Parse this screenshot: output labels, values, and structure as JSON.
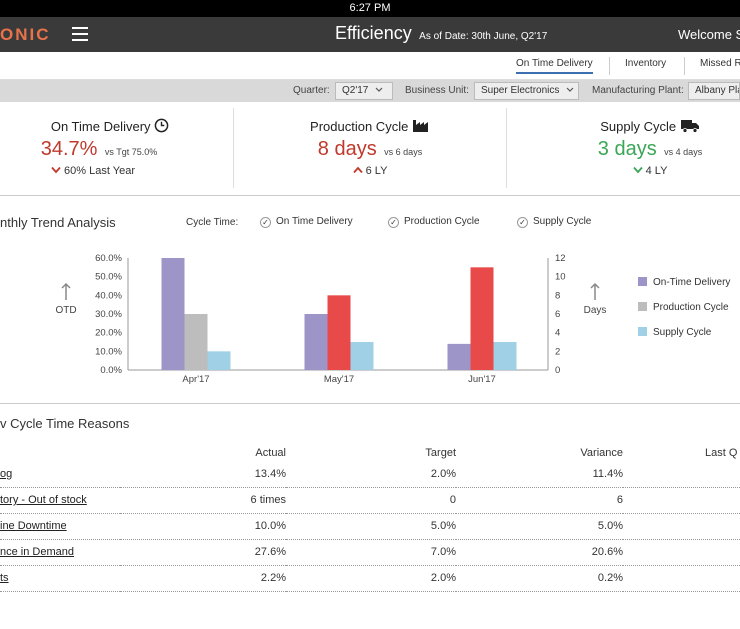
{
  "status_bar": {
    "time": "6:27 PM"
  },
  "app_bar": {
    "brand": "ONIC",
    "title": "Efficiency",
    "as_of": "As of Date: 30th June, Q2'17",
    "welcome": "Welcome S"
  },
  "tabs": [
    {
      "label": "On Time Delivery",
      "active": true
    },
    {
      "label": "Inventory",
      "active": false
    },
    {
      "label": "Missed R",
      "active": false
    }
  ],
  "filters": {
    "quarter": {
      "label": "Quarter:",
      "value": "Q2'17"
    },
    "business_unit": {
      "label": "Business Unit:",
      "value": "Super Electronics"
    },
    "plant": {
      "label": "Manufacturing Plant:",
      "value": "Albany Pla"
    }
  },
  "kpis": [
    {
      "title": "On Time Delivery",
      "icon": "clock-icon",
      "value": "34.7%",
      "sub": "vs Tgt  75.0%",
      "trend": "down",
      "ly": "60% Last Year",
      "value_color": "#c0392b"
    },
    {
      "title": "Production Cycle",
      "icon": "factory-icon",
      "value": "8 days",
      "sub": "vs 6 days",
      "trend": "up",
      "ly": "6 LY",
      "value_color": "#c0392b"
    },
    {
      "title": "Supply Cycle",
      "icon": "truck-icon",
      "value": "3 days",
      "sub": "vs 4 days",
      "trend": "down",
      "ly": "4 LY",
      "value_color": "#3aa657"
    }
  ],
  "trend": {
    "title": "nthly Trend Analysis",
    "cycle_time_label": "Cycle Time:",
    "filters": [
      "On Time Delivery",
      "Production Cycle",
      "Supply Cycle"
    ]
  },
  "chart_data": {
    "type": "bar",
    "categories": [
      "Apr'17",
      "May'17",
      "Jun'17"
    ],
    "series": [
      {
        "name": "On-Time Delivery",
        "axis": "left",
        "color": "#9d95c8",
        "values": [
          60,
          30,
          14
        ]
      },
      {
        "name": "Production Cycle",
        "axis": "right",
        "color_per_category": [
          "#bdbdbd",
          "#e84a4a",
          "#e84a4a"
        ],
        "values": [
          6,
          8,
          11
        ]
      },
      {
        "name": "Supply Cycle",
        "axis": "right",
        "color": "#9fd0e6",
        "values": [
          2,
          3,
          3
        ]
      }
    ],
    "y_left": {
      "label": "OTD",
      "ticks": [
        "0.0%",
        "10.0%",
        "20.0%",
        "30.0%",
        "40.0%",
        "50.0%",
        "60.0%"
      ],
      "range": [
        0,
        60
      ]
    },
    "y_right": {
      "label": "Days",
      "ticks": [
        "0",
        "2",
        "4",
        "6",
        "8",
        "10",
        "12"
      ],
      "range": [
        0,
        12
      ]
    },
    "legend_position": "right",
    "legend": [
      {
        "name": "On-Time Delivery",
        "color": "#9d95c8"
      },
      {
        "name": "Production Cycle",
        "color": "#bdbdbd"
      },
      {
        "name": "Supply Cycle",
        "color": "#9fd0e6"
      }
    ]
  },
  "reasons": {
    "title": "v Cycle Time Reasons",
    "headers": {
      "actual": "Actual",
      "target": "Target",
      "variance": "Variance",
      "last": "Last Q"
    },
    "rows": [
      {
        "name": "og",
        "actual": "13.4%",
        "target": "2.0%",
        "variance": "11.4%"
      },
      {
        "name": "tory - Out of stock",
        "actual": "6 times",
        "target": "0",
        "variance": "6"
      },
      {
        "name": "ine Downtime",
        "actual": "10.0%",
        "target": "5.0%",
        "variance": "5.0%"
      },
      {
        "name": "nce in Demand",
        "actual": "27.6%",
        "target": "7.0%",
        "variance": "20.6%"
      },
      {
        "name": "ts",
        "actual": "2.2%",
        "target": "2.0%",
        "variance": "0.2%"
      }
    ]
  }
}
